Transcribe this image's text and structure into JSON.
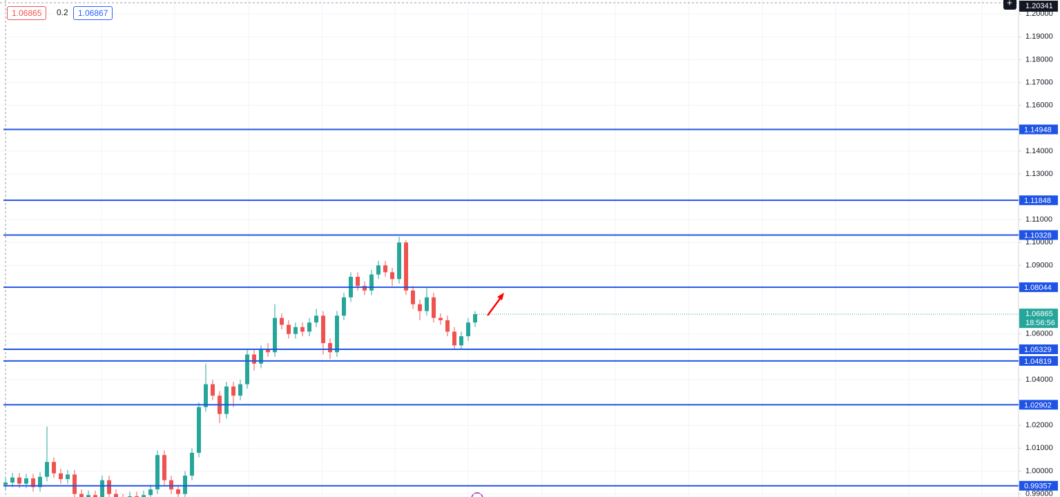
{
  "chart_data": {
    "type": "candlestick",
    "ylim": [
      0.98866,
      1.2061
    ],
    "yticks": [
      {
        "value": 1.2,
        "label": "1.20000"
      },
      {
        "value": 1.19,
        "label": "1.19000"
      },
      {
        "value": 1.18,
        "label": "1.18000"
      },
      {
        "value": 1.17,
        "label": "1.17000"
      },
      {
        "value": 1.16,
        "label": "1.16000"
      },
      {
        "value": 1.14,
        "label": "1.14000"
      },
      {
        "value": 1.13,
        "label": "1.13000"
      },
      {
        "value": 1.11,
        "label": "1.11000"
      },
      {
        "value": 1.1,
        "label": "1.10000"
      },
      {
        "value": 1.09,
        "label": "1.09000"
      },
      {
        "value": 1.06,
        "label": "1.06000"
      },
      {
        "value": 1.04,
        "label": "1.04000"
      },
      {
        "value": 1.02,
        "label": "1.02000"
      },
      {
        "value": 1.01,
        "label": "1.01000"
      },
      {
        "value": 1.0,
        "label": "1.00000"
      },
      {
        "value": 0.99,
        "label": "0.99000"
      }
    ],
    "grid": true,
    "up_color": "#26a69a",
    "down_color": "#ef5350",
    "level_color": "#1e53e5",
    "levels": [
      1.14948,
      1.11848,
      1.10328,
      1.08044,
      1.05329,
      1.04819,
      1.02902,
      0.99357
    ],
    "crosshair_price": 1.20341,
    "countdown": "18:56:56",
    "toolbar": {
      "sell": 1.06865,
      "spread": 0.2,
      "buy": 1.06867
    },
    "open": [
      0.994,
      0.995,
      0.9972,
      0.9945,
      0.9968,
      0.993,
      0.9975,
      1.004,
      0.999,
      0.9965,
      0.9985,
      0.99,
      0.988,
      0.9895,
      0.9885,
      0.996,
      0.99,
      0.988,
      0.9875,
      0.989,
      0.9885,
      0.9895,
      0.992,
      1.007,
      0.996,
      0.992,
      0.99,
      0.998,
      1.008,
      1.028,
      1.038,
      1.033,
      1.025,
      1.037,
      1.033,
      1.038,
      1.051,
      1.047,
      1.053,
      1.052,
      1.067,
      1.064,
      1.06,
      1.063,
      1.061,
      1.065,
      1.068,
      1.056,
      1.052,
      1.068,
      1.076,
      1.085,
      1.081,
      1.079,
      1.086,
      1.09,
      1.087,
      1.084,
      1.1,
      1.079,
      1.073,
      1.07,
      1.076,
      1.067,
      1.066,
      1.061,
      1.055,
      1.059,
      1.065
    ],
    "high": [
      0.997,
      0.9992,
      0.9992,
      0.9988,
      0.9988,
      0.9995,
      1.0195,
      1.006,
      1.001,
      1.0005,
      1.0005,
      0.992,
      0.9915,
      0.9915,
      0.998,
      0.998,
      0.992,
      0.99,
      0.991,
      0.991,
      0.9915,
      0.994,
      1.009,
      1.009,
      0.998,
      0.994,
      1.0,
      1.01,
      1.03,
      1.047,
      1.04,
      1.035,
      1.039,
      1.039,
      1.04,
      1.053,
      1.053,
      1.055,
      1.056,
      1.073,
      1.069,
      1.066,
      1.065,
      1.065,
      1.067,
      1.071,
      1.07,
      1.058,
      1.07,
      1.078,
      1.087,
      1.087,
      1.083,
      1.088,
      1.092,
      1.092,
      1.089,
      1.1025,
      1.101,
      1.081,
      1.075,
      1.08,
      1.078,
      1.069,
      1.068,
      1.063,
      1.061,
      1.067,
      1.07
    ],
    "low": [
      0.992,
      0.993,
      0.9925,
      0.9925,
      0.991,
      0.991,
      0.9955,
      0.997,
      0.9945,
      0.9945,
      0.988,
      0.986,
      0.986,
      0.9865,
      0.9865,
      0.988,
      0.986,
      0.9855,
      0.9855,
      0.9865,
      0.9865,
      0.9875,
      0.99,
      0.994,
      0.99,
      0.988,
      0.988,
      0.996,
      1.006,
      1.026,
      1.031,
      1.021,
      1.023,
      1.028,
      1.031,
      1.036,
      1.044,
      1.045,
      1.05,
      1.05,
      1.062,
      1.058,
      1.058,
      1.059,
      1.059,
      1.063,
      1.051,
      1.049,
      1.05,
      1.066,
      1.074,
      1.079,
      1.077,
      1.077,
      1.084,
      1.085,
      1.081,
      1.082,
      1.077,
      1.071,
      1.066,
      1.068,
      1.065,
      1.064,
      1.059,
      1.053,
      1.053,
      1.057,
      1.063
    ],
    "close": [
      0.995,
      0.9972,
      0.9945,
      0.9968,
      0.993,
      0.9975,
      1.004,
      0.999,
      0.9965,
      0.9985,
      0.99,
      0.988,
      0.9895,
      0.9885,
      0.996,
      0.99,
      0.988,
      0.9875,
      0.989,
      0.9885,
      0.9895,
      0.992,
      1.007,
      0.996,
      0.992,
      0.99,
      0.998,
      1.008,
      1.028,
      1.038,
      1.033,
      1.025,
      1.037,
      1.033,
      1.038,
      1.051,
      1.047,
      1.053,
      1.052,
      1.067,
      1.064,
      1.06,
      1.063,
      1.061,
      1.065,
      1.068,
      1.056,
      1.052,
      1.068,
      1.076,
      1.085,
      1.081,
      1.079,
      1.086,
      1.09,
      1.087,
      1.084,
      1.1,
      1.079,
      1.073,
      1.07,
      1.076,
      1.067,
      1.066,
      1.061,
      1.055,
      1.059,
      1.065,
      1.06865
    ]
  }
}
